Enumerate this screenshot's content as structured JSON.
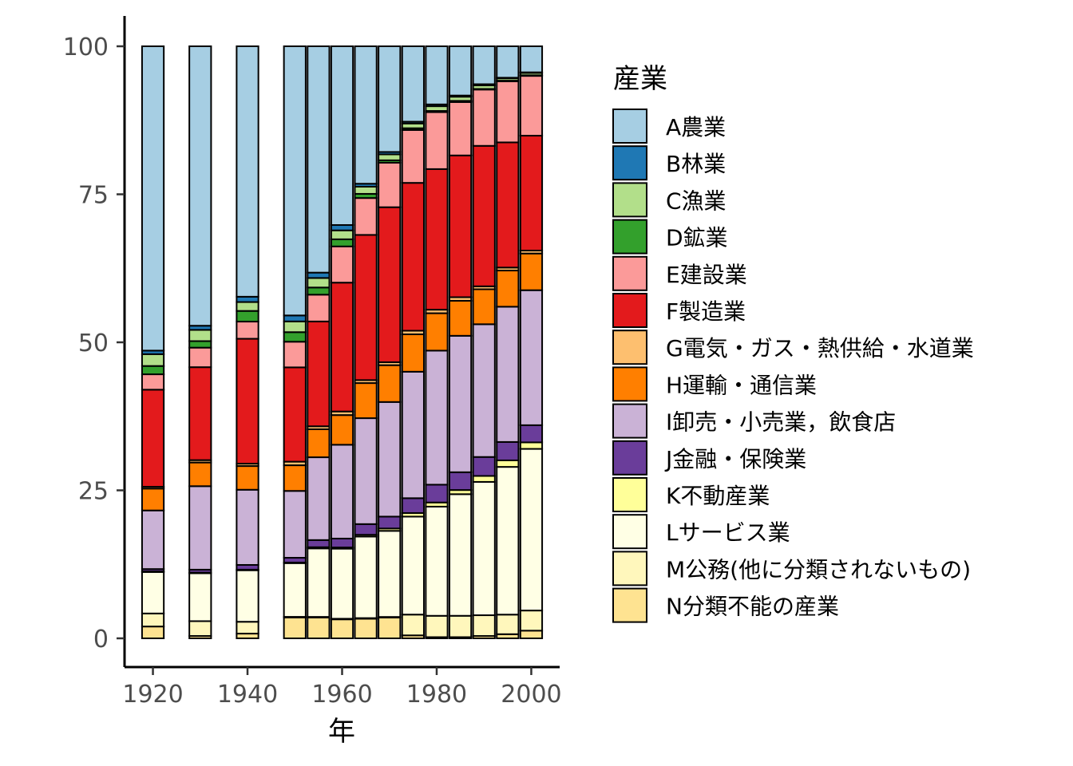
{
  "chart_data": {
    "type": "bar",
    "stacked": true,
    "xlabel": "年",
    "ylabel": "",
    "ylim": [
      0,
      100
    ],
    "yticks": [
      0,
      25,
      50,
      75,
      100
    ],
    "xticks": [
      1920,
      1940,
      1960,
      1980,
      2000
    ],
    "xlim": [
      1914,
      2006
    ],
    "bar_width_years": 4.6,
    "legend_title": "産業",
    "legend_position": "right",
    "categories": [
      1920,
      1930,
      1940,
      1950,
      1955,
      1960,
      1965,
      1970,
      1975,
      1980,
      1985,
      1990,
      1995,
      2000
    ],
    "series": [
      {
        "name": "N分類不能の産業",
        "color": "#FEE391",
        "values": [
          2.0,
          0.4,
          0.8,
          3.5,
          3.5,
          3.2,
          3.3,
          3.5,
          0.5,
          0.2,
          0.2,
          0.4,
          0.7,
          1.3
        ]
      },
      {
        "name": "M公務(他に分類されないもの)",
        "color": "#FFF7BC",
        "values": [
          2.2,
          2.5,
          2.0,
          0.1,
          0.1,
          0.1,
          0.1,
          0.1,
          3.5,
          3.6,
          3.6,
          3.5,
          3.3,
          3.4
        ]
      },
      {
        "name": "Lサービス業",
        "color": "#FFFFE5",
        "values": [
          7.0,
          8.1,
          8.7,
          9.0,
          11.5,
          11.8,
          13.7,
          14.5,
          16.5,
          18.4,
          20.5,
          22.5,
          24.9,
          27.3
        ]
      },
      {
        "name": "K不動産業",
        "color": "#FFFF99",
        "values": [
          0.1,
          0.1,
          0.1,
          0.1,
          0.2,
          0.2,
          0.3,
          0.4,
          0.6,
          0.7,
          0.7,
          1.0,
          1.1,
          1.1
        ]
      },
      {
        "name": "J金融・保険業",
        "color": "#6A3D9A",
        "values": [
          0.4,
          0.5,
          0.8,
          0.8,
          1.2,
          1.5,
          1.8,
          2.0,
          2.5,
          3.0,
          3.0,
          3.2,
          3.1,
          2.9
        ]
      },
      {
        "name": "I卸売・小売業，飲食店",
        "color": "#CAB2D6",
        "values": [
          9.9,
          14.1,
          12.7,
          11.2,
          13.9,
          15.8,
          17.8,
          19.3,
          21.3,
          22.6,
          23.0,
          22.4,
          22.8,
          22.8
        ]
      },
      {
        "name": "H運輸・通信業",
        "color": "#FF7F00",
        "values": [
          3.7,
          4.0,
          4.0,
          4.3,
          4.7,
          5.0,
          5.9,
          6.2,
          6.3,
          6.3,
          5.9,
          5.9,
          6.1,
          6.2
        ]
      },
      {
        "name": "G電気・ガス・熱供給・水道業",
        "color": "#FDBF6F",
        "values": [
          0.3,
          0.4,
          0.4,
          0.6,
          0.5,
          0.6,
          0.5,
          0.5,
          0.6,
          0.6,
          0.6,
          0.5,
          0.5,
          0.5
        ]
      },
      {
        "name": "F製造業",
        "color": "#E31A1C",
        "values": [
          16.4,
          15.7,
          21.1,
          15.8,
          17.6,
          21.7,
          24.4,
          26.1,
          24.9,
          23.7,
          23.9,
          23.7,
          21.1,
          19.4
        ]
      },
      {
        "name": "E建設業",
        "color": "#FB9A99",
        "values": [
          2.6,
          3.3,
          2.9,
          4.3,
          4.5,
          6.1,
          6.2,
          7.5,
          8.9,
          9.6,
          9.0,
          9.5,
          10.3,
          10.1
        ]
      },
      {
        "name": "D鉱業",
        "color": "#33A02C",
        "values": [
          1.4,
          1.1,
          1.8,
          1.6,
          1.2,
          1.2,
          0.7,
          0.4,
          0.3,
          0.2,
          0.2,
          0.1,
          0.1,
          0.1
        ]
      },
      {
        "name": "C漁業",
        "color": "#B2DF8A",
        "values": [
          2.0,
          1.9,
          1.5,
          1.8,
          1.6,
          1.5,
          1.2,
          1.0,
          0.8,
          0.8,
          0.7,
          0.6,
          0.4,
          0.4
        ]
      },
      {
        "name": "B林業",
        "color": "#1F78B4",
        "values": [
          0.6,
          0.7,
          0.9,
          1.0,
          0.9,
          0.9,
          0.5,
          0.4,
          0.3,
          0.3,
          0.2,
          0.2,
          0.1,
          0.1
        ]
      },
      {
        "name": "A農業",
        "color": "#A6CEE3",
        "values": [
          51.4,
          47.2,
          42.3,
          45.1,
          38.0,
          30.1,
          23.1,
          17.8,
          12.7,
          9.8,
          8.3,
          6.4,
          5.3,
          4.4
        ]
      }
    ]
  }
}
